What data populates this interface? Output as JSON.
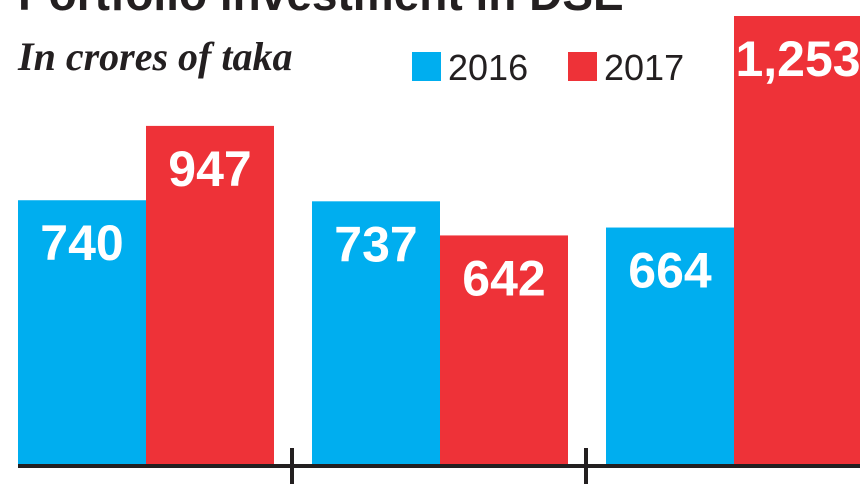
{
  "chart_data": {
    "type": "bar",
    "title": "Portfolio investment in DSE",
    "subtitle": "In crores of taka",
    "categories": [
      "",
      "",
      ""
    ],
    "series": [
      {
        "name": "2016",
        "color": "#00aeef",
        "values": [
          740,
          737,
          664
        ]
      },
      {
        "name": "2017",
        "color": "#ee3238",
        "values": [
          947,
          642,
          1253
        ]
      }
    ],
    "value_labels": [
      [
        "740",
        "737",
        "664"
      ],
      [
        "947",
        "642",
        "1,253"
      ]
    ],
    "ylim": [
      0,
      1253
    ],
    "grid": false,
    "legend_position": "top-right"
  }
}
